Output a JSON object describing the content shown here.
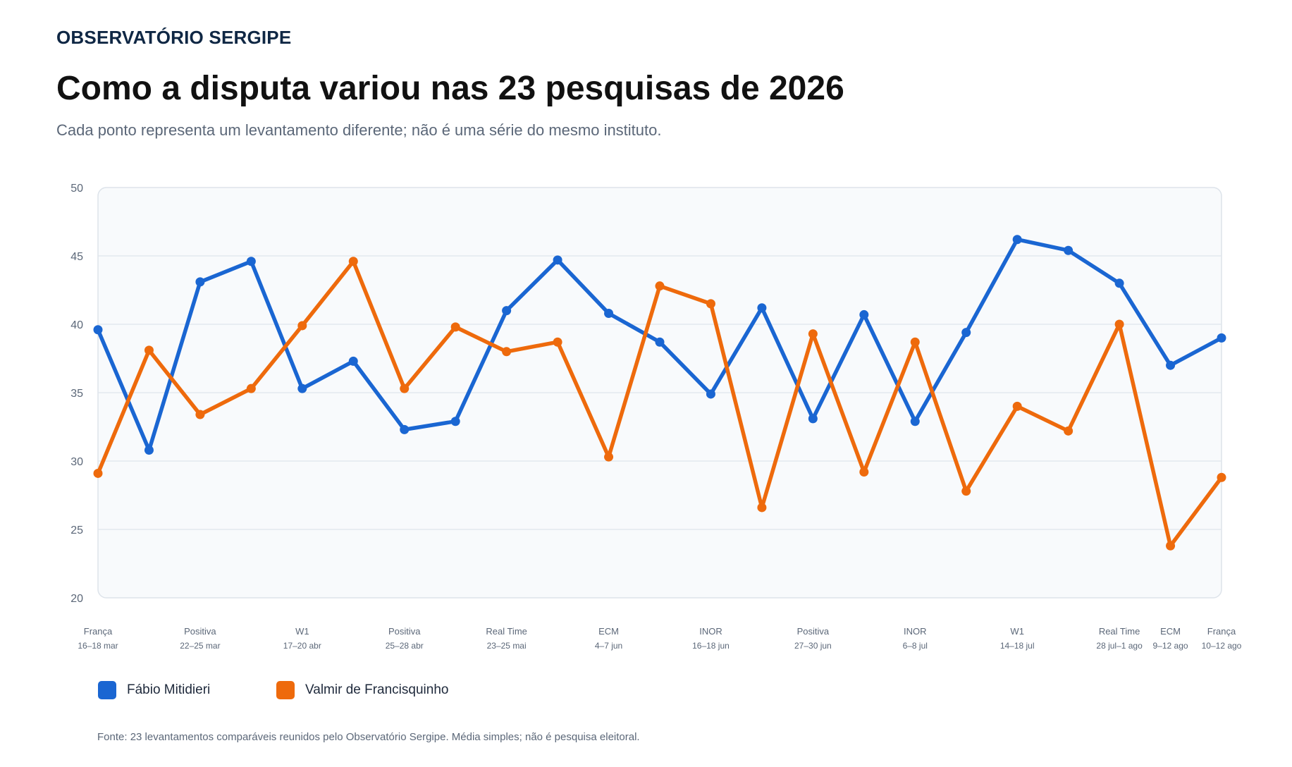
{
  "header": {
    "brand": "OBSERVATÓRIO SERGIPE",
    "title": "Como a disputa variou nas 23 pesquisas de 2026",
    "subtitle": "Cada ponto representa um levantamento diferente; não é uma série do mesmo instituto."
  },
  "footer": {
    "source": "Fonte: 23 levantamentos comparáveis reunidos pelo Observatório Sergipe. Média simples; não é pesquisa eleitoral."
  },
  "chart_data": {
    "type": "line",
    "ylim": [
      20,
      50
    ],
    "yticks": [
      20,
      25,
      30,
      35,
      40,
      45,
      50
    ],
    "grid": true,
    "legend_position": "bottom-left",
    "x_tick_labels": [
      {
        "index": 0,
        "institute": "França",
        "dates": "16–18 mar"
      },
      {
        "index": 2,
        "institute": "Positiva",
        "dates": "22–25 mar"
      },
      {
        "index": 4,
        "institute": "W1",
        "dates": "17–20 abr"
      },
      {
        "index": 6,
        "institute": "Positiva",
        "dates": "25–28 abr"
      },
      {
        "index": 8,
        "institute": "Real Time",
        "dates": "23–25 mai"
      },
      {
        "index": 10,
        "institute": "ECM",
        "dates": "4–7 jun"
      },
      {
        "index": 12,
        "institute": "INOR",
        "dates": "16–18 jun"
      },
      {
        "index": 14,
        "institute": "Positiva",
        "dates": "27–30 jun"
      },
      {
        "index": 16,
        "institute": "INOR",
        "dates": "6–8 jul"
      },
      {
        "index": 18,
        "institute": "W1",
        "dates": "14–18 jul"
      },
      {
        "index": 20,
        "institute": "Real Time",
        "dates": "28 jul–1 ago"
      },
      {
        "index": 21,
        "institute": "ECM",
        "dates": "9–12 ago"
      },
      {
        "index": 22,
        "institute": "França",
        "dates": "10–12 ago"
      }
    ],
    "series": [
      {
        "name": "Fábio Mitidieri",
        "color": "#1a66d2",
        "values": [
          39.6,
          30.8,
          43.1,
          44.6,
          35.3,
          37.3,
          32.3,
          32.9,
          41.0,
          44.7,
          40.8,
          38.7,
          34.9,
          41.2,
          33.1,
          40.7,
          32.9,
          39.4,
          46.2,
          45.4,
          43.0,
          37.0,
          39.0
        ]
      },
      {
        "name": "Valmir de Francisquinho",
        "color": "#ee6a0c",
        "values": [
          29.1,
          38.1,
          33.4,
          35.3,
          39.9,
          44.6,
          35.3,
          39.8,
          38.0,
          38.7,
          30.3,
          42.8,
          41.5,
          26.6,
          39.3,
          29.2,
          38.7,
          27.8,
          34.0,
          32.2,
          40.0,
          23.8,
          28.8
        ]
      }
    ]
  }
}
